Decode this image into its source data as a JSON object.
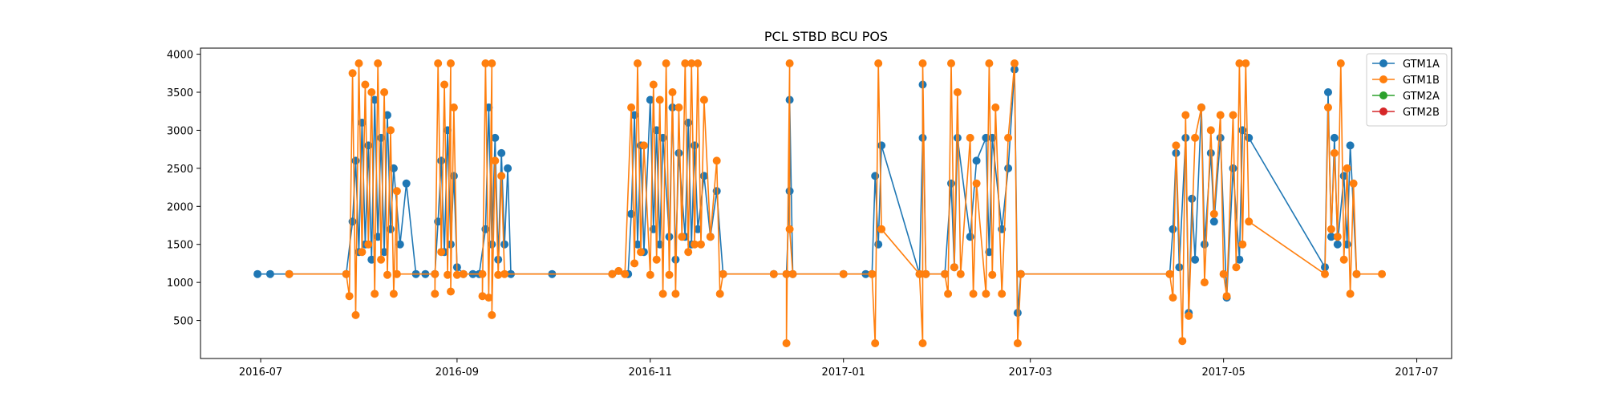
{
  "chart_data": {
    "type": "line",
    "title": "PCL STBD BCU POS",
    "xlabel": "",
    "ylabel": "",
    "x_axis_type": "date",
    "xlim": [
      "2016-06-12",
      "2017-07-12"
    ],
    "ylim": [
      0,
      4080
    ],
    "x_ticks": [
      {
        "date": "2016-07-01",
        "label": "2016-07"
      },
      {
        "date": "2016-09-01",
        "label": "2016-09"
      },
      {
        "date": "2016-11-01",
        "label": "2016-11"
      },
      {
        "date": "2017-01-01",
        "label": "2017-01"
      },
      {
        "date": "2017-03-01",
        "label": "2017-03"
      },
      {
        "date": "2017-05-01",
        "label": "2017-05"
      },
      {
        "date": "2017-07-01",
        "label": "2017-07"
      }
    ],
    "y_ticks": [
      500,
      1000,
      1500,
      2000,
      2500,
      3000,
      3500,
      4000
    ],
    "grid": false,
    "legend_position": "top-right",
    "marker": "circle",
    "series": [
      {
        "name": "GTM1A",
        "color": "#1f77b4",
        "points": [
          [
            "2016-06-30",
            1110
          ],
          [
            "2016-07-04",
            1110
          ],
          [
            "2016-07-10",
            1110
          ],
          [
            "2016-07-28",
            1110
          ],
          [
            "2016-07-30",
            1800
          ],
          [
            "2016-07-31",
            2600
          ],
          [
            "2016-08-01",
            1400
          ],
          [
            "2016-08-02",
            3100
          ],
          [
            "2016-08-03",
            1500
          ],
          [
            "2016-08-04",
            2800
          ],
          [
            "2016-08-05",
            1300
          ],
          [
            "2016-08-06",
            3400
          ],
          [
            "2016-08-07",
            1600
          ],
          [
            "2016-08-08",
            2900
          ],
          [
            "2016-08-09",
            1400
          ],
          [
            "2016-08-10",
            3200
          ],
          [
            "2016-08-11",
            1700
          ],
          [
            "2016-08-12",
            2500
          ],
          [
            "2016-08-14",
            1500
          ],
          [
            "2016-08-16",
            2300
          ],
          [
            "2016-08-19",
            1110
          ],
          [
            "2016-08-22",
            1110
          ],
          [
            "2016-08-25",
            1110
          ],
          [
            "2016-08-26",
            1800
          ],
          [
            "2016-08-27",
            2600
          ],
          [
            "2016-08-28",
            1400
          ],
          [
            "2016-08-29",
            3000
          ],
          [
            "2016-08-30",
            1500
          ],
          [
            "2016-08-31",
            2400
          ],
          [
            "2016-09-01",
            1200
          ],
          [
            "2016-09-03",
            1110
          ],
          [
            "2016-09-06",
            1110
          ],
          [
            "2016-09-08",
            1110
          ],
          [
            "2016-09-10",
            1700
          ],
          [
            "2016-09-11",
            3300
          ],
          [
            "2016-09-12",
            1500
          ],
          [
            "2016-09-13",
            2900
          ],
          [
            "2016-09-14",
            1300
          ],
          [
            "2016-09-15",
            2700
          ],
          [
            "2016-09-16",
            1500
          ],
          [
            "2016-09-17",
            2500
          ],
          [
            "2016-09-18",
            1110
          ],
          [
            "2016-10-01",
            1110
          ],
          [
            "2016-10-20",
            1110
          ],
          [
            "2016-10-25",
            1110
          ],
          [
            "2016-10-26",
            1900
          ],
          [
            "2016-10-27",
            3200
          ],
          [
            "2016-10-28",
            1500
          ],
          [
            "2016-10-29",
            2800
          ],
          [
            "2016-10-30",
            1400
          ],
          [
            "2016-11-01",
            3400
          ],
          [
            "2016-11-02",
            1700
          ],
          [
            "2016-11-03",
            3000
          ],
          [
            "2016-11-04",
            1500
          ],
          [
            "2016-11-05",
            2900
          ],
          [
            "2016-11-07",
            1600
          ],
          [
            "2016-11-08",
            3300
          ],
          [
            "2016-11-09",
            1300
          ],
          [
            "2016-11-10",
            2700
          ],
          [
            "2016-11-12",
            1600
          ],
          [
            "2016-11-13",
            3100
          ],
          [
            "2016-11-14",
            1500
          ],
          [
            "2016-11-15",
            2800
          ],
          [
            "2016-11-16",
            1700
          ],
          [
            "2016-11-18",
            2400
          ],
          [
            "2016-11-20",
            1600
          ],
          [
            "2016-11-22",
            2200
          ],
          [
            "2016-11-24",
            1110
          ],
          [
            "2016-12-10",
            1110
          ],
          [
            "2016-12-14",
            1110
          ],
          [
            "2016-12-15",
            2200
          ],
          [
            "2016-12-15",
            3400
          ],
          [
            "2016-12-16",
            1110
          ],
          [
            "2017-01-01",
            1110
          ],
          [
            "2017-01-08",
            1110
          ],
          [
            "2017-01-10",
            1110
          ],
          [
            "2017-01-11",
            2400
          ],
          [
            "2017-01-12",
            1500
          ],
          [
            "2017-01-13",
            2800
          ],
          [
            "2017-01-25",
            1110
          ],
          [
            "2017-01-26",
            2900
          ],
          [
            "2017-01-26",
            3600
          ],
          [
            "2017-01-27",
            1110
          ],
          [
            "2017-02-02",
            1110
          ],
          [
            "2017-02-04",
            2300
          ],
          [
            "2017-02-05",
            1200
          ],
          [
            "2017-02-06",
            2900
          ],
          [
            "2017-02-10",
            1600
          ],
          [
            "2017-02-12",
            2600
          ],
          [
            "2017-02-15",
            2900
          ],
          [
            "2017-02-16",
            1400
          ],
          [
            "2017-02-17",
            2900
          ],
          [
            "2017-02-20",
            1700
          ],
          [
            "2017-02-22",
            2500
          ],
          [
            "2017-02-24",
            3800
          ],
          [
            "2017-02-25",
            600
          ],
          [
            "2017-02-26",
            1110
          ],
          [
            "2017-04-14",
            1110
          ],
          [
            "2017-04-15",
            1700
          ],
          [
            "2017-04-16",
            2700
          ],
          [
            "2017-04-17",
            1200
          ],
          [
            "2017-04-19",
            2900
          ],
          [
            "2017-04-20",
            600
          ],
          [
            "2017-04-21",
            2100
          ],
          [
            "2017-04-22",
            1300
          ],
          [
            "2017-04-24",
            3300
          ],
          [
            "2017-04-25",
            1500
          ],
          [
            "2017-04-27",
            2700
          ],
          [
            "2017-04-28",
            1800
          ],
          [
            "2017-04-30",
            2900
          ],
          [
            "2017-05-02",
            800
          ],
          [
            "2017-05-04",
            2500
          ],
          [
            "2017-05-06",
            1300
          ],
          [
            "2017-05-07",
            3000
          ],
          [
            "2017-05-09",
            2900
          ],
          [
            "2017-06-02",
            1200
          ],
          [
            "2017-06-03",
            3500
          ],
          [
            "2017-06-04",
            1600
          ],
          [
            "2017-06-05",
            2900
          ],
          [
            "2017-06-06",
            1500
          ],
          [
            "2017-06-08",
            2400
          ],
          [
            "2017-06-09",
            1500
          ],
          [
            "2017-06-10",
            2800
          ],
          [
            "2017-06-12",
            1110
          ]
        ]
      },
      {
        "name": "GTM1B",
        "color": "#ff7f0e",
        "points": [
          [
            "2016-07-10",
            1110
          ],
          [
            "2016-07-28",
            1110
          ],
          [
            "2016-07-29",
            820
          ],
          [
            "2016-07-30",
            3750
          ],
          [
            "2016-07-31",
            570
          ],
          [
            "2016-08-01",
            3880
          ],
          [
            "2016-08-02",
            1400
          ],
          [
            "2016-08-03",
            3600
          ],
          [
            "2016-08-04",
            1500
          ],
          [
            "2016-08-05",
            3500
          ],
          [
            "2016-08-06",
            850
          ],
          [
            "2016-08-07",
            3880
          ],
          [
            "2016-08-08",
            1300
          ],
          [
            "2016-08-09",
            3500
          ],
          [
            "2016-08-10",
            1100
          ],
          [
            "2016-08-11",
            3000
          ],
          [
            "2016-08-12",
            850
          ],
          [
            "2016-08-13",
            2200
          ],
          [
            "2016-08-13",
            1110
          ],
          [
            "2016-08-25",
            1110
          ],
          [
            "2016-08-25",
            850
          ],
          [
            "2016-08-26",
            3880
          ],
          [
            "2016-08-27",
            1400
          ],
          [
            "2016-08-28",
            3600
          ],
          [
            "2016-08-29",
            1100
          ],
          [
            "2016-08-30",
            3880
          ],
          [
            "2016-08-30",
            880
          ],
          [
            "2016-08-31",
            3300
          ],
          [
            "2016-09-01",
            1100
          ],
          [
            "2016-09-03",
            1110
          ],
          [
            "2016-09-09",
            1110
          ],
          [
            "2016-09-09",
            820
          ],
          [
            "2016-09-10",
            3880
          ],
          [
            "2016-09-11",
            800
          ],
          [
            "2016-09-12",
            3880
          ],
          [
            "2016-09-12",
            570
          ],
          [
            "2016-09-13",
            2600
          ],
          [
            "2016-09-14",
            1100
          ],
          [
            "2016-09-15",
            2400
          ],
          [
            "2016-09-16",
            1110
          ],
          [
            "2016-10-20",
            1110
          ],
          [
            "2016-10-22",
            1150
          ],
          [
            "2016-10-24",
            1110
          ],
          [
            "2016-10-26",
            3300
          ],
          [
            "2016-10-27",
            1250
          ],
          [
            "2016-10-28",
            3880
          ],
          [
            "2016-10-29",
            1400
          ],
          [
            "2016-10-30",
            2800
          ],
          [
            "2016-11-01",
            1100
          ],
          [
            "2016-11-02",
            3600
          ],
          [
            "2016-11-03",
            1300
          ],
          [
            "2016-11-04",
            3400
          ],
          [
            "2016-11-05",
            850
          ],
          [
            "2016-11-06",
            3880
          ],
          [
            "2016-11-07",
            1100
          ],
          [
            "2016-11-08",
            3500
          ],
          [
            "2016-11-09",
            850
          ],
          [
            "2016-11-10",
            3300
          ],
          [
            "2016-11-11",
            1600
          ],
          [
            "2016-11-12",
            3880
          ],
          [
            "2016-11-13",
            1400
          ],
          [
            "2016-11-14",
            3880
          ],
          [
            "2016-11-15",
            1500
          ],
          [
            "2016-11-16",
            3880
          ],
          [
            "2016-11-17",
            1500
          ],
          [
            "2016-11-18",
            3400
          ],
          [
            "2016-11-20",
            1600
          ],
          [
            "2016-11-22",
            2600
          ],
          [
            "2016-11-23",
            850
          ],
          [
            "2016-11-24",
            1110
          ],
          [
            "2016-12-10",
            1110
          ],
          [
            "2016-12-14",
            1110
          ],
          [
            "2016-12-14",
            200
          ],
          [
            "2016-12-15",
            3880
          ],
          [
            "2016-12-15",
            1700
          ],
          [
            "2016-12-16",
            1110
          ],
          [
            "2017-01-01",
            1110
          ],
          [
            "2017-01-10",
            1110
          ],
          [
            "2017-01-11",
            200
          ],
          [
            "2017-01-12",
            3880
          ],
          [
            "2017-01-13",
            1700
          ],
          [
            "2017-01-25",
            1110
          ],
          [
            "2017-01-26",
            200
          ],
          [
            "2017-01-26",
            3880
          ],
          [
            "2017-01-27",
            1110
          ],
          [
            "2017-02-02",
            1110
          ],
          [
            "2017-02-03",
            850
          ],
          [
            "2017-02-04",
            3880
          ],
          [
            "2017-02-05",
            1200
          ],
          [
            "2017-02-06",
            3500
          ],
          [
            "2017-02-07",
            1110
          ],
          [
            "2017-02-10",
            2900
          ],
          [
            "2017-02-11",
            850
          ],
          [
            "2017-02-12",
            2300
          ],
          [
            "2017-02-15",
            850
          ],
          [
            "2017-02-16",
            3880
          ],
          [
            "2017-02-17",
            1100
          ],
          [
            "2017-02-18",
            3300
          ],
          [
            "2017-02-20",
            850
          ],
          [
            "2017-02-22",
            2900
          ],
          [
            "2017-02-24",
            3880
          ],
          [
            "2017-02-25",
            200
          ],
          [
            "2017-02-26",
            1110
          ],
          [
            "2017-04-14",
            1110
          ],
          [
            "2017-04-15",
            800
          ],
          [
            "2017-04-16",
            2800
          ],
          [
            "2017-04-18",
            230
          ],
          [
            "2017-04-19",
            3200
          ],
          [
            "2017-04-20",
            560
          ],
          [
            "2017-04-22",
            2900
          ],
          [
            "2017-04-24",
            3300
          ],
          [
            "2017-04-25",
            1000
          ],
          [
            "2017-04-27",
            3000
          ],
          [
            "2017-04-28",
            1900
          ],
          [
            "2017-04-30",
            3200
          ],
          [
            "2017-05-01",
            1110
          ],
          [
            "2017-05-02",
            820
          ],
          [
            "2017-05-04",
            3200
          ],
          [
            "2017-05-05",
            1200
          ],
          [
            "2017-05-06",
            3880
          ],
          [
            "2017-05-07",
            1500
          ],
          [
            "2017-05-08",
            3880
          ],
          [
            "2017-05-09",
            1800
          ],
          [
            "2017-06-02",
            1110
          ],
          [
            "2017-06-03",
            3300
          ],
          [
            "2017-06-04",
            1700
          ],
          [
            "2017-06-05",
            2700
          ],
          [
            "2017-06-06",
            1600
          ],
          [
            "2017-06-07",
            3880
          ],
          [
            "2017-06-08",
            1300
          ],
          [
            "2017-06-09",
            2500
          ],
          [
            "2017-06-10",
            850
          ],
          [
            "2017-06-11",
            2300
          ],
          [
            "2017-06-12",
            1110
          ],
          [
            "2017-06-20",
            1110
          ]
        ]
      },
      {
        "name": "GTM2A",
        "color": "#2ca02c",
        "points": []
      },
      {
        "name": "GTM2B",
        "color": "#d62728",
        "points": []
      }
    ]
  }
}
